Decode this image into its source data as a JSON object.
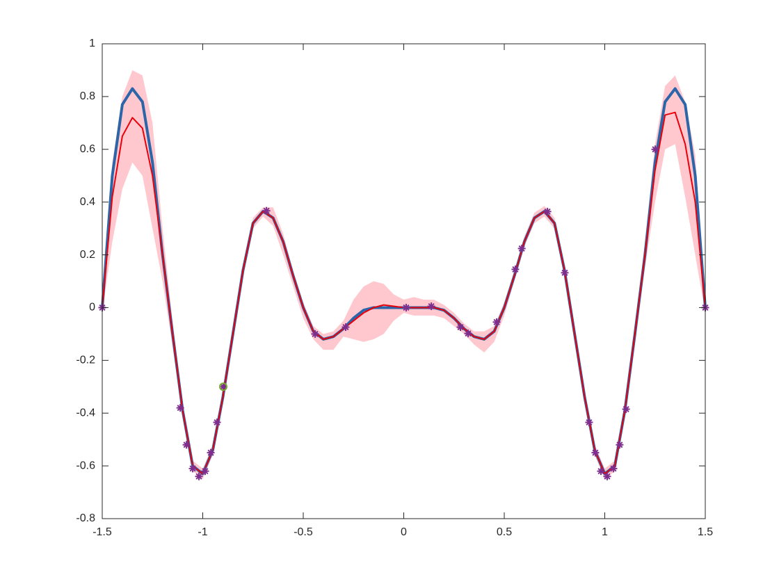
{
  "chart_data": {
    "type": "line",
    "xlim": [
      -1.5,
      1.5
    ],
    "ylim": [
      -0.8,
      1
    ],
    "xticks": [
      -1.5,
      -1,
      -0.5,
      0,
      0.5,
      1,
      1.5
    ],
    "yticks": [
      -0.8,
      -0.6,
      -0.4,
      -0.2,
      0,
      0.2,
      0.4,
      0.6,
      0.8,
      1
    ],
    "x": [
      -1.5,
      -1.45,
      -1.4,
      -1.35,
      -1.3,
      -1.25,
      -1.2,
      -1.15,
      -1.1,
      -1.05,
      -1,
      -0.95,
      -0.9,
      -0.85,
      -0.8,
      -0.75,
      -0.7,
      -0.65,
      -0.6,
      -0.55,
      -0.5,
      -0.45,
      -0.4,
      -0.35,
      -0.3,
      -0.25,
      -0.2,
      -0.15,
      -0.1,
      -0.05,
      0,
      0.05,
      0.1,
      0.15,
      0.2,
      0.25,
      0.3,
      0.35,
      0.4,
      0.45,
      0.5,
      0.55,
      0.6,
      0.65,
      0.7,
      0.75,
      0.8,
      0.85,
      0.9,
      0.95,
      1,
      1.05,
      1.1,
      1.15,
      1.2,
      1.25,
      1.3,
      1.35,
      1.4,
      1.45,
      1.5
    ],
    "band": {
      "color": "#ff9aa8",
      "upper": [
        0.02,
        0.55,
        0.8,
        0.9,
        0.88,
        0.7,
        0.3,
        -0.05,
        -0.37,
        -0.58,
        -0.61,
        -0.52,
        -0.32,
        -0.08,
        0.16,
        0.34,
        0.38,
        0.38,
        0.28,
        0.14,
        0.02,
        -0.07,
        -0.1,
        -0.09,
        -0.05,
        0.03,
        0.08,
        0.1,
        0.09,
        0.05,
        0.03,
        0.04,
        0.03,
        0.03,
        0.01,
        -0.02,
        -0.06,
        -0.09,
        -0.09,
        -0.07,
        0.02,
        0.14,
        0.27,
        0.36,
        0.385,
        0.34,
        0.16,
        -0.08,
        -0.32,
        -0.52,
        -0.61,
        -0.58,
        -0.37,
        -0.08,
        0.25,
        0.62,
        0.84,
        0.88,
        0.78,
        0.58,
        0.02
      ],
      "lower": [
        -0.02,
        0.25,
        0.45,
        0.55,
        0.5,
        0.3,
        0.1,
        -0.15,
        -0.41,
        -0.62,
        -0.65,
        -0.56,
        -0.36,
        -0.12,
        0.12,
        0.3,
        0.345,
        0.31,
        0.2,
        0.08,
        -0.04,
        -0.12,
        -0.16,
        -0.16,
        -0.11,
        -0.12,
        -0.13,
        -0.12,
        -0.1,
        -0.05,
        -0.02,
        -0.03,
        -0.03,
        -0.03,
        -0.04,
        -0.07,
        -0.1,
        -0.14,
        -0.17,
        -0.13,
        -0.03,
        0.1,
        0.23,
        0.32,
        0.345,
        0.3,
        0.12,
        -0.12,
        -0.36,
        -0.56,
        -0.65,
        -0.62,
        -0.41,
        -0.12,
        0.15,
        0.4,
        0.6,
        0.62,
        0.42,
        0.2,
        -0.02
      ]
    },
    "series": [
      {
        "color": "#2c65a8",
        "width": 4,
        "values": [
          0,
          0.5,
          0.77,
          0.83,
          0.78,
          0.55,
          0.2,
          -0.1,
          -0.39,
          -0.6,
          -0.63,
          -0.54,
          -0.34,
          -0.1,
          0.14,
          0.32,
          0.365,
          0.34,
          0.25,
          0.12,
          0.0,
          -0.09,
          -0.12,
          -0.11,
          -0.08,
          -0.04,
          -0.01,
          0,
          0,
          0,
          0,
          0,
          0,
          0,
          -0.01,
          -0.04,
          -0.08,
          -0.11,
          -0.12,
          -0.09,
          0.0,
          0.12,
          0.25,
          0.34,
          0.365,
          0.32,
          0.14,
          -0.1,
          -0.34,
          -0.54,
          -0.63,
          -0.6,
          -0.39,
          -0.1,
          0.2,
          0.55,
          0.78,
          0.83,
          0.77,
          0.5,
          0
        ]
      },
      {
        "color": "#e8000b",
        "width": 2,
        "values": [
          0,
          0.42,
          0.65,
          0.72,
          0.68,
          0.5,
          0.2,
          -0.1,
          -0.39,
          -0.6,
          -0.63,
          -0.54,
          -0.34,
          -0.1,
          0.14,
          0.32,
          0.365,
          0.34,
          0.25,
          0.12,
          0.0,
          -0.09,
          -0.12,
          -0.11,
          -0.08,
          -0.05,
          -0.02,
          0.0,
          0.01,
          0.005,
          0,
          0,
          0,
          0,
          -0.01,
          -0.04,
          -0.08,
          -0.11,
          -0.12,
          -0.09,
          0.0,
          0.12,
          0.25,
          0.34,
          0.365,
          0.32,
          0.14,
          -0.1,
          -0.34,
          -0.54,
          -0.63,
          -0.6,
          -0.39,
          -0.1,
          0.2,
          0.52,
          0.73,
          0.74,
          0.62,
          0.4,
          0
        ]
      }
    ],
    "points": {
      "color": "#7e2f8e",
      "marker": "asterisk",
      "x": [
        -1.5,
        -1.112,
        -1.081,
        -1.05,
        -1.019,
        -0.988,
        -0.96,
        -0.929,
        -0.898,
        -0.683,
        -0.441,
        -0.289,
        0.012,
        0.137,
        0.282,
        0.32,
        0.462,
        0.555,
        0.587,
        0.715,
        0.801,
        0.922,
        0.953,
        0.981,
        1.012,
        1.043,
        1.074,
        1.106,
        1.251,
        1.5
      ],
      "y": [
        0,
        -0.38,
        -0.52,
        -0.61,
        -0.64,
        -0.62,
        -0.55,
        -0.435,
        -0.3,
        0.367,
        -0.1,
        -0.074,
        0,
        0.005,
        -0.074,
        -0.098,
        -0.055,
        0.145,
        0.224,
        0.364,
        0.132,
        -0.435,
        -0.55,
        -0.62,
        -0.64,
        -0.61,
        -0.52,
        -0.385,
        0.6,
        0
      ]
    },
    "highlight": {
      "x": -0.898,
      "y": -0.3,
      "color": "#77ac30"
    }
  }
}
